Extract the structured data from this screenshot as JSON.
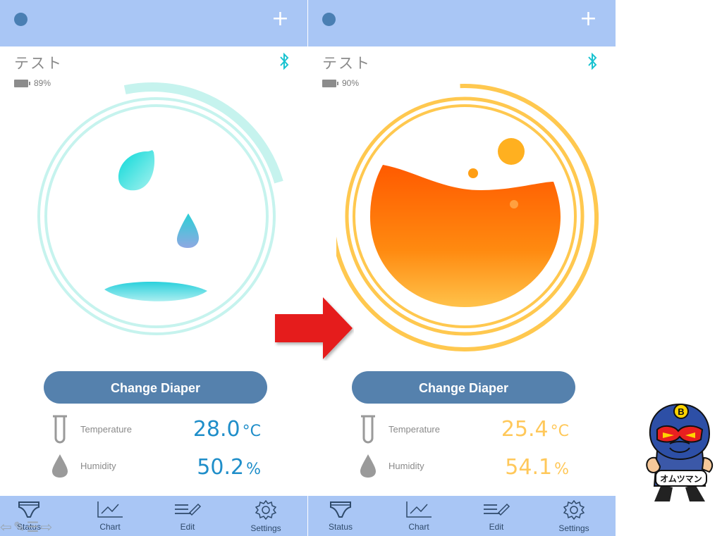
{
  "panels": [
    {
      "id": "left",
      "header": {
        "add_icon": "plus-icon",
        "status_dot": "status-dot"
      },
      "device_name": "テスト",
      "battery_text": "89%",
      "bluetooth_icon": "bluetooth-icon",
      "gauge_state": "dry",
      "button_label": "Change Diaper",
      "temperature": {
        "label": "Temperature",
        "value": "28.0",
        "unit": "°C"
      },
      "humidity": {
        "label": "Humidity",
        "value": "50.2",
        "unit": "%"
      },
      "value_color": "#1f8ec9",
      "nav": [
        {
          "label": "Status",
          "icon": "diaper-icon"
        },
        {
          "label": "Chart",
          "icon": "chart-icon"
        },
        {
          "label": "Edit",
          "icon": "edit-icon"
        },
        {
          "label": "Settings",
          "icon": "gear-icon"
        }
      ]
    },
    {
      "id": "right",
      "header": {
        "add_icon": "plus-icon",
        "status_dot": "status-dot"
      },
      "device_name": "テスト",
      "battery_text": "90%",
      "bluetooth_icon": "bluetooth-icon",
      "gauge_state": "wet",
      "button_label": "Change Diaper",
      "temperature": {
        "label": "Temperature",
        "value": "25.4",
        "unit": "°C"
      },
      "humidity": {
        "label": "Humidity",
        "value": "54.1",
        "unit": "%"
      },
      "value_color": "#ffc85a",
      "nav": [
        {
          "label": "Status",
          "icon": "diaper-icon"
        },
        {
          "label": "Chart",
          "icon": "chart-icon"
        },
        {
          "label": "Edit",
          "icon": "edit-icon"
        },
        {
          "label": "Settings",
          "icon": "gear-icon"
        }
      ]
    }
  ],
  "mascot_badge_text": "オムツマン",
  "mascot_letter": "B",
  "colors": {
    "topbar": "#a9c6f5",
    "button": "#5581ad",
    "dry_ring": "#c6f3ee",
    "wet_ring": "#ffc84f",
    "arrow": "#e51a1a"
  }
}
